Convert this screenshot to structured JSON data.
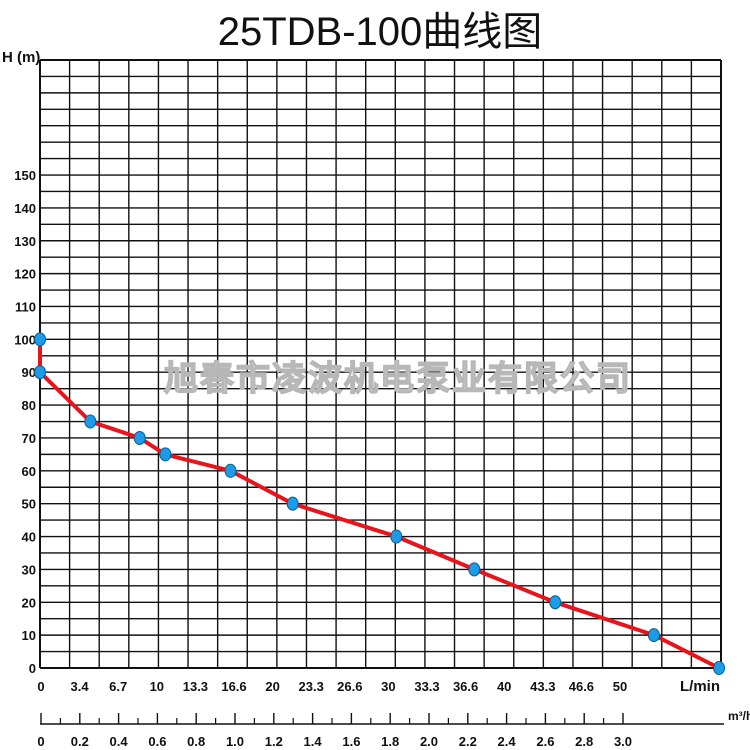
{
  "chart_data": {
    "type": "line",
    "title": "25TDB-100曲线图",
    "ylabel": "H (m)",
    "xlabel": "L/min",
    "x2label": "m³/h",
    "ylim": [
      0,
      185
    ],
    "xlim": [
      0,
      69
    ],
    "y_ticks": [
      "0",
      "10",
      "20",
      "30",
      "40",
      "50",
      "60",
      "70",
      "80",
      "90",
      "100",
      "110",
      "120",
      "130",
      "140",
      "150"
    ],
    "x_ticks": [
      "0",
      "3.4",
      "6.7",
      "10",
      "13.3",
      "16.6",
      "20",
      "23.3",
      "26.6",
      "30",
      "33.3",
      "36.6",
      "40",
      "43.3",
      "46.6",
      "50"
    ],
    "x2_ticks": [
      "0",
      "0.2",
      "0.4",
      "0.6",
      "0.8",
      "1.0",
      "1.2",
      "1.4",
      "1.6",
      "1.8",
      "2.0",
      "2.2",
      "2.4",
      "2.6",
      "2.8",
      "3.0"
    ],
    "grid": true,
    "legend": "none",
    "line_color": "#e8141b",
    "marker_color": "#1e9be6",
    "watermark": "旭春市凌波机电泵业有限公司",
    "series": [
      {
        "points": [
          [
            0,
            100
          ],
          [
            0,
            90
          ],
          [
            5.1,
            75
          ],
          [
            10.1,
            70
          ],
          [
            12.7,
            65
          ],
          [
            19.3,
            60
          ],
          [
            25.6,
            50
          ],
          [
            36.1,
            40
          ],
          [
            44.0,
            30
          ],
          [
            52.2,
            20
          ],
          [
            62.2,
            10
          ],
          [
            68.8,
            0
          ]
        ]
      }
    ]
  }
}
